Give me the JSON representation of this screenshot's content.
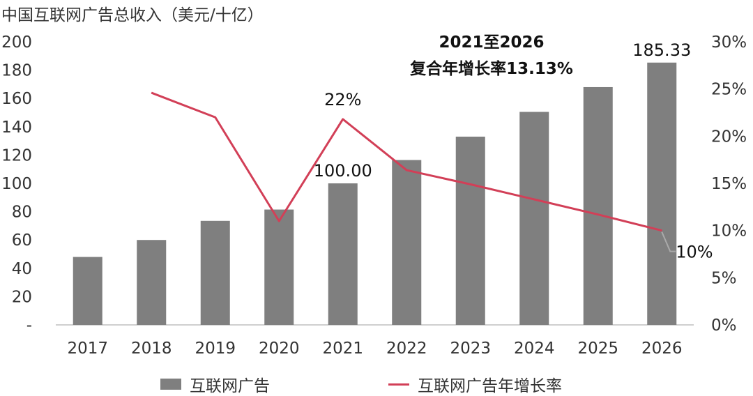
{
  "chart_data": {
    "type": "bar",
    "unit_title": "中国互联网广告总收入（美元/十亿）",
    "categories": [
      "2017",
      "2018",
      "2019",
      "2020",
      "2021",
      "2022",
      "2023",
      "2024",
      "2025",
      "2026"
    ],
    "series": [
      {
        "name": "互联网广告",
        "type": "bar",
        "axis": "left",
        "values": [
          48,
          60,
          73.5,
          81.5,
          100.0,
          116.5,
          133,
          150.5,
          168,
          185.33
        ]
      },
      {
        "name": "互联网广告年增长率",
        "type": "line",
        "axis": "right",
        "values": [
          null,
          24.6,
          22.0,
          11.0,
          21.8,
          16.4,
          14.9,
          13.3,
          11.7,
          10.0
        ]
      }
    ],
    "ylim_left": [
      0,
      200
    ],
    "yticks_left": [
      "-",
      "20",
      "40",
      "60",
      "80",
      "100",
      "120",
      "140",
      "160",
      "180",
      "200"
    ],
    "ylim_right": [
      0,
      30
    ],
    "yticks_right": [
      "0%",
      "5%",
      "10%",
      "15%",
      "20%",
      "25%",
      "30%"
    ],
    "data_labels": [
      {
        "series": 0,
        "index": 4,
        "text": "100.00"
      },
      {
        "series": 0,
        "index": 9,
        "text": "185.33"
      },
      {
        "series": 1,
        "index": 4,
        "text": "22%"
      },
      {
        "series": 1,
        "index": 9,
        "text": "10%"
      }
    ],
    "annotation": {
      "line1": "2021至2026",
      "line2": "复合年增长率13.13%"
    },
    "legend_position": "bottom",
    "grid": false,
    "colors": {
      "bar": "#7f7f7f",
      "line": "#d23f57",
      "leader": "#aaaaaa",
      "axis": "#bfbfbf"
    }
  }
}
